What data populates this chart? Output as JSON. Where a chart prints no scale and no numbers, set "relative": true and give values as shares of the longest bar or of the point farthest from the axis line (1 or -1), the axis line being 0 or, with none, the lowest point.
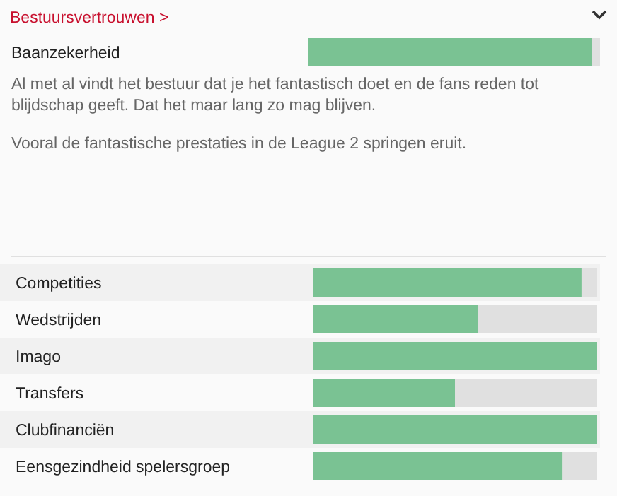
{
  "chart_data": [
    {
      "type": "bar",
      "orientation": "horizontal",
      "relative": true,
      "title": "Bestuursvertrouwen >",
      "categories": [
        "Baanzekerheid"
      ],
      "values": [
        1
      ],
      "color": "#7ac293",
      "annotations": [
        "Al met al vindt het bestuur dat je het fantastisch doet en de fans reden tot blijdschap geeft. Dat het maar lang zo mag blijven.",
        "Vooral de fantastische prestaties in de League 2 springen eruit."
      ]
    },
    {
      "type": "bar",
      "orientation": "horizontal",
      "relative": true,
      "categories": [
        "Competities",
        "Wedstrijden",
        "Imago",
        "Transfers",
        "Clubfinanciën",
        "Eensgezindheid spelersgroep"
      ],
      "values": [
        0.945,
        0.58,
        1,
        0.5,
        1,
        0.876
      ],
      "color": "#7ac293"
    }
  ]
}
